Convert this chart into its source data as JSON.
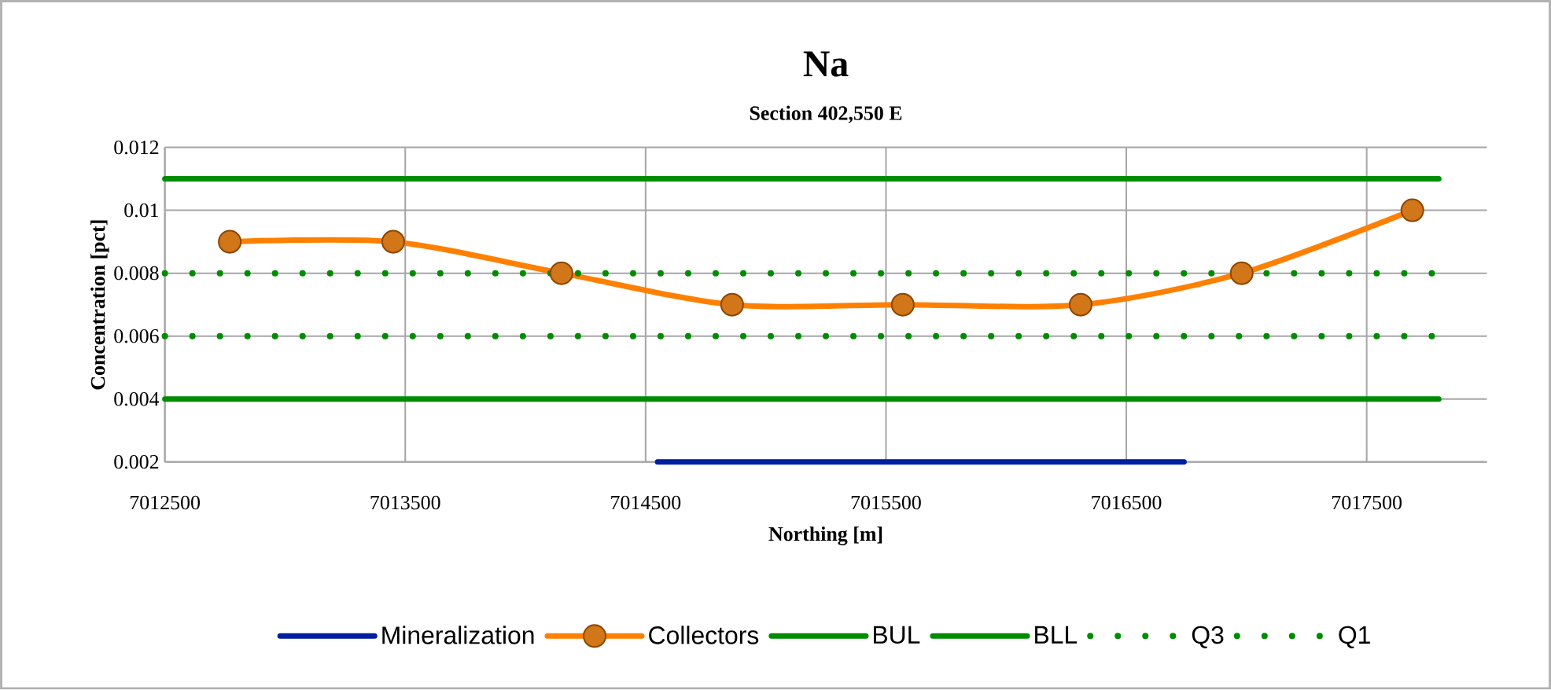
{
  "chart_data": {
    "type": "line",
    "title": "Na",
    "subtitle": "Section 402,550 E",
    "xlabel": "Northing [m]",
    "ylabel": "Concentration [pct]",
    "xlim": [
      7012500,
      7018000
    ],
    "xticks": [
      7012500,
      7013500,
      7014500,
      7015500,
      7016500,
      7017500
    ],
    "ylim": [
      0.002,
      0.012
    ],
    "yticks": [
      0.002,
      0.004,
      0.006,
      0.008,
      0.01,
      0.012
    ],
    "grid": true,
    "legend": "bottom",
    "series": [
      {
        "name": "Mineralization",
        "color": "#001ea0",
        "x": [
          7014550,
          7016740
        ],
        "values": [
          0.002,
          0.002
        ],
        "marker": "none",
        "line_style": "solid"
      },
      {
        "name": "Collectors",
        "color": "#ff8000",
        "x": [
          7012770,
          7013450,
          7014150,
          7014860,
          7015570,
          7016310,
          7016980,
          7017690
        ],
        "values": [
          0.009,
          0.009,
          0.008,
          0.007,
          0.007,
          0.007,
          0.008,
          0.01
        ],
        "marker": "circle",
        "line_style": "solid"
      },
      {
        "name": "BUL",
        "color": "#008c00",
        "x": [
          7012500,
          7017800
        ],
        "values": [
          0.011,
          0.011
        ],
        "marker": "none",
        "line_style": "solid"
      },
      {
        "name": "BLL",
        "color": "#008c00",
        "x": [
          7012500,
          7017800
        ],
        "values": [
          0.004,
          0.004
        ],
        "marker": "none",
        "line_style": "solid"
      },
      {
        "name": "Q3",
        "color": "#008c00",
        "x": [
          7012500,
          7017800
        ],
        "values": [
          0.008,
          0.008
        ],
        "marker": "none",
        "line_style": "dotted"
      },
      {
        "name": "Q1",
        "color": "#008c00",
        "x": [
          7012500,
          7017800
        ],
        "values": [
          0.006,
          0.006
        ],
        "marker": "none",
        "line_style": "dotted"
      }
    ]
  }
}
